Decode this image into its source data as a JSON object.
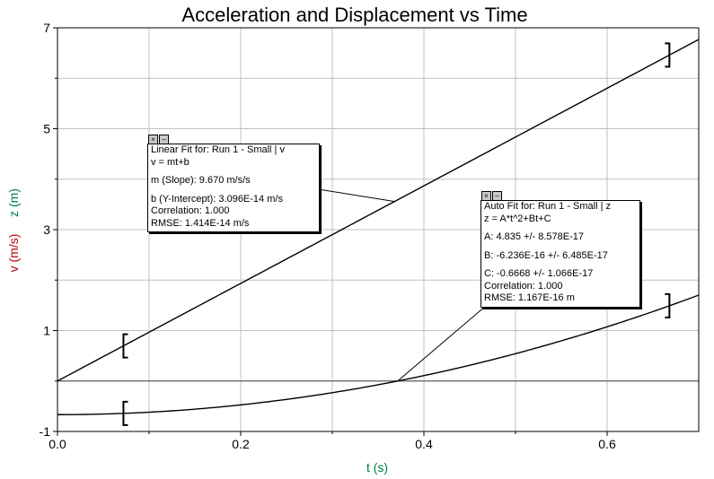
{
  "chart_data": {
    "type": "line",
    "title": "Acceleration and Displacement vs Time",
    "xlabel": "t (s)",
    "ylabel_v": "v (m/s)",
    "ylabel_z": "z (m)",
    "xlim": [
      0,
      0.7
    ],
    "ylim": [
      -1,
      7
    ],
    "xticks": [
      "0.0",
      "0.2",
      "0.4",
      "0.6"
    ],
    "yticks": [
      "-1",
      "1",
      "3",
      "5",
      "7"
    ],
    "grid": true,
    "colors": {
      "v": "#c00000",
      "z": "#008040",
      "curve": "#000000",
      "grid": "#c0c0c0"
    },
    "series": [
      {
        "name": "v",
        "fit": {
          "m": 9.67,
          "b": 0
        },
        "x": [
          0.0,
          0.1,
          0.2,
          0.3,
          0.4,
          0.5,
          0.6,
          0.7
        ],
        "values": [
          0.0,
          0.967,
          1.934,
          2.901,
          3.868,
          4.835,
          5.802,
          6.769
        ]
      },
      {
        "name": "z",
        "fit": {
          "A": 4.835,
          "B": 0,
          "C": -0.6668
        },
        "x": [
          0.0,
          0.1,
          0.2,
          0.3,
          0.4,
          0.5,
          0.6,
          0.7
        ],
        "values": [
          -0.667,
          -0.618,
          -0.473,
          -0.232,
          0.107,
          0.542,
          1.074,
          1.702
        ]
      }
    ]
  },
  "linear_fit": {
    "title": "Linear Fit for: Run 1 - Small | v",
    "equation": "v = mt+b",
    "slope": "m (Slope): 9.670 m/s/s",
    "intercept": "b (Y-Intercept): 3.096E-14 m/s",
    "correlation": "Correlation: 1.000",
    "rmse": "RMSE: 1.414E-14 m/s"
  },
  "auto_fit": {
    "title": "Auto Fit for: Run 1 - Small | z",
    "equation": "z = A*t^2+Bt+C",
    "a": "A: 4.835 +/- 8.578E-17",
    "b": "B: -6.236E-16 +/- 6.485E-17",
    "c": "C: -0.6668 +/- 1.066E-17",
    "correlation": "Correlation: 1.000",
    "rmse": "RMSE: 1.167E-16 m"
  },
  "icons": {
    "close": "close-icon",
    "minimize": "minimize-icon"
  }
}
